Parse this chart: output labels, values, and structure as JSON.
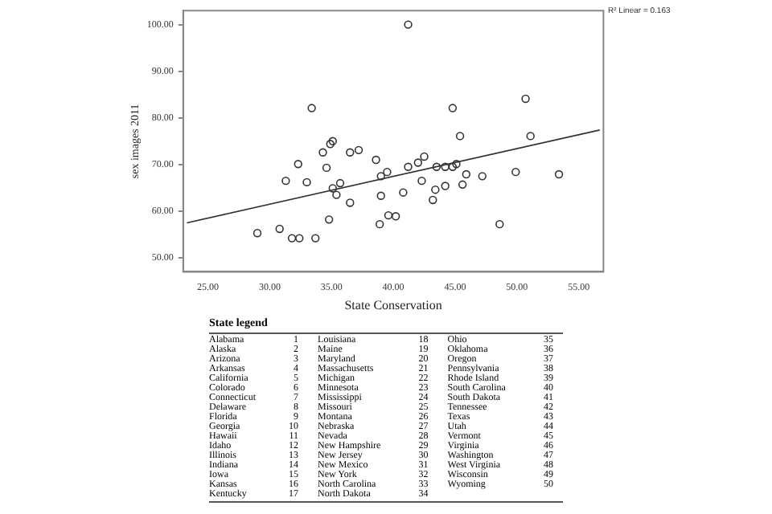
{
  "chart_data": {
    "type": "scatter",
    "xlabel": "State Conservation",
    "ylabel": "sex images 2011",
    "xlim": [
      23,
      57
    ],
    "ylim": [
      47,
      103
    ],
    "xticks": [
      {
        "value": 25,
        "label": "25.00"
      },
      {
        "value": 30,
        "label": "30.00"
      },
      {
        "value": 35,
        "label": "35.00"
      },
      {
        "value": 40,
        "label": "40.00"
      },
      {
        "value": 45,
        "label": "45.00"
      },
      {
        "value": 50,
        "label": "50.00"
      },
      {
        "value": 55,
        "label": "55.00"
      }
    ],
    "yticks": [
      {
        "value": 50,
        "label": "50.00"
      },
      {
        "value": 60,
        "label": "60.00"
      },
      {
        "value": 70,
        "label": "70.00"
      },
      {
        "value": 80,
        "label": "80.00"
      },
      {
        "value": 90,
        "label": "90.00"
      },
      {
        "value": 100,
        "label": "100.00"
      }
    ],
    "marker": "circle",
    "series": [
      {
        "color": "#333333",
        "x": [
          41.2,
          50.7,
          44.8,
          33.4,
          51.1,
          45.4,
          34.9,
          35.1,
          37.2,
          38.6,
          32.3,
          34.6,
          31.3,
          35.1,
          35.7,
          39.0,
          39.5,
          41.2,
          42.0,
          42.5,
          43.5,
          44.2,
          44.8,
          45.1,
          42.3,
          43.4,
          44.2,
          43.2,
          45.6,
          45.9,
          47.2,
          39.0,
          40.8,
          39.6,
          40.2,
          38.9,
          34.8,
          30.8,
          29.0,
          31.8,
          32.4,
          33.7,
          49.9,
          53.4,
          48.6,
          36.5,
          35.4,
          33.0,
          34.3,
          36.5
        ],
        "values": [
          100.0,
          84.1,
          82.1,
          82.1,
          76.1,
          76.1,
          74.4,
          75.0,
          73.1,
          71.0,
          70.1,
          69.3,
          66.5,
          64.9,
          66.0,
          67.5,
          68.4,
          69.5,
          70.4,
          71.7,
          69.5,
          69.5,
          69.5,
          70.1,
          66.5,
          64.6,
          65.4,
          62.4,
          65.7,
          67.9,
          67.5,
          63.3,
          64.0,
          59.1,
          58.9,
          57.2,
          58.2,
          56.2,
          55.3,
          54.2,
          54.2,
          54.2,
          68.4,
          67.9,
          57.2,
          61.8,
          63.5,
          66.2,
          72.6,
          72.6
        ]
      },
      {
        "type": "line",
        "marker": "none",
        "color": "#333333",
        "x": [
          23.3,
          56.7
        ],
        "values": [
          57.5,
          77.4
        ]
      }
    ],
    "annotations": [
      "R² Linear = 0.163",
      "State legend",
      "Alabama\t1",
      "Alaska\t2",
      "Arizona\t3",
      "Arkansas\t4",
      "California\t5",
      "Colorado\t6",
      "Connecticut\t7",
      "Delaware\t8",
      "Florida\t9",
      "Georgia\t10",
      "Hawaii\t11",
      "Idaho\t12",
      "Illinois\t13",
      "Indiana\t14",
      "Iowa\t15",
      "Kansas\t16",
      "Kentucky\t17",
      "Louisiana\t18",
      "Maine\t19",
      "Maryland\t20",
      "Massachusetts\t21",
      "Michigan\t22",
      "Minnesota\t23",
      "Mississippi\t24",
      "Missouri\t25",
      "Montana\t26",
      "Nebraska\t27",
      "Nevada\t28",
      "New Hampshire\t29",
      "New Jersey\t30",
      "New Mexico\t31",
      "New York\t32",
      "North Carolina\t33",
      "North Dakota\t34",
      "Ohio\t35",
      "Oklahoma\t36",
      "Oregon\t37",
      "Pennsylvania\t38",
      "Rhode Island\t39",
      "South Carolina\t40",
      "South Dakota\t41",
      "Tennessee\t42",
      "Texas\t43",
      "Utah\t44",
      "Vermont\t45",
      "Virginia\t46",
      "Washington\t47",
      "West Virginia\t48",
      "Wisconsin\t49",
      "Wyoming\t50"
    ]
  }
}
